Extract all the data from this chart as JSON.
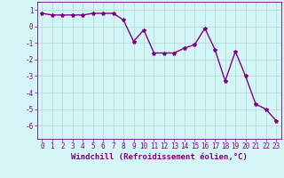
{
  "x": [
    0,
    1,
    2,
    3,
    4,
    5,
    6,
    7,
    8,
    9,
    10,
    11,
    12,
    13,
    14,
    15,
    16,
    17,
    18,
    19,
    20,
    21,
    22,
    23
  ],
  "y": [
    0.8,
    0.7,
    0.7,
    0.7,
    0.7,
    0.8,
    0.8,
    0.8,
    0.4,
    -0.9,
    -0.2,
    -1.6,
    -1.6,
    -1.6,
    -1.3,
    -1.1,
    -0.1,
    -1.4,
    -3.3,
    -1.5,
    -3.0,
    -4.7,
    -5.0,
    -5.7
  ],
  "line_color": "#800080",
  "marker": "*",
  "marker_size": 3,
  "background_color": "#d4f5f5",
  "grid_color": "#b0d8d8",
  "xlabel": "Windchill (Refroidissement éolien,°C)",
  "ylim": [
    -6.8,
    1.5
  ],
  "yticks": [
    1,
    0,
    -1,
    -2,
    -3,
    -4,
    -5,
    -6
  ],
  "xticks": [
    0,
    1,
    2,
    3,
    4,
    5,
    6,
    7,
    8,
    9,
    10,
    11,
    12,
    13,
    14,
    15,
    16,
    17,
    18,
    19,
    20,
    21,
    22,
    23
  ],
  "xlabel_fontsize": 6.5,
  "tick_fontsize": 5.5,
  "line_width": 1.0
}
